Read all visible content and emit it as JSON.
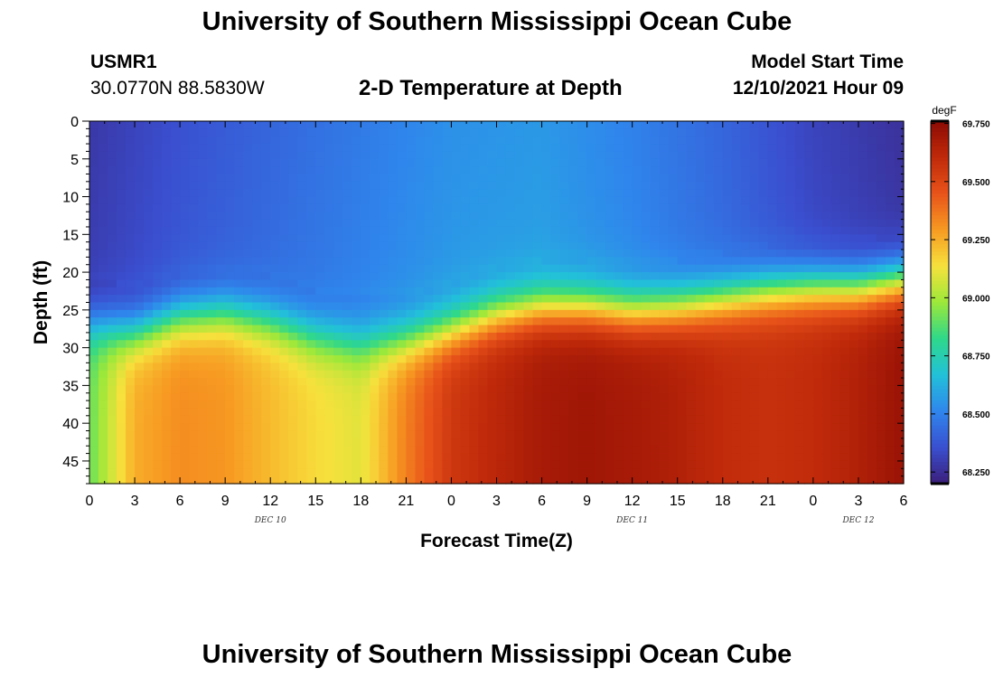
{
  "page": {
    "title": "University of Southern Mississippi Ocean Cube",
    "station": "USMR1",
    "coords": "30.0770N  88.5830W",
    "subtitle": "2-D Temperature at Depth",
    "model_start_label": "Model Start Time",
    "model_start_value": "12/10/2021 Hour 09",
    "footer_title": "University of Southern Mississippi Ocean Cube"
  },
  "colors": {
    "scale": [
      "#3b1f7a",
      "#3a4fd0",
      "#2f86ec",
      "#22c1d9",
      "#2fd88a",
      "#9ce83a",
      "#f7e13c",
      "#f79a22",
      "#e8531a",
      "#c02a0a",
      "#8c0a04"
    ]
  },
  "chart_data": {
    "type": "heatmap",
    "title": "2-D Temperature at Depth",
    "xlabel": "Forecast Time(Z)",
    "ylabel": "Depth (ft)",
    "x_range": [
      0,
      54
    ],
    "y_range": [
      0,
      48
    ],
    "x_ticks": [
      0,
      3,
      6,
      9,
      12,
      15,
      18,
      21,
      24,
      27,
      30,
      33,
      36,
      39,
      42,
      45,
      48,
      51,
      54
    ],
    "x_tick_labels": [
      "0",
      "3",
      "6",
      "9",
      "12",
      "15",
      "18",
      "21",
      "0",
      "3",
      "6",
      "9",
      "12",
      "15",
      "18",
      "21",
      "0",
      "3",
      "6"
    ],
    "y_ticks": [
      0,
      5,
      10,
      15,
      20,
      25,
      30,
      35,
      40,
      45
    ],
    "y_tick_labels": [
      "0",
      "5",
      "10",
      "15",
      "20",
      "25",
      "30",
      "35",
      "40",
      "45"
    ],
    "date_labels": [
      {
        "text": "DEC 10",
        "x": 12
      },
      {
        "text": "DEC 11",
        "x": 36
      },
      {
        "text": "DEC 12",
        "x": 51
      }
    ],
    "colorbar": {
      "unit": "degF",
      "min": 68.2,
      "max": 69.76,
      "ticks": [
        69.75,
        69.5,
        69.25,
        69.0,
        68.75,
        68.5,
        68.25
      ],
      "tick_labels": [
        "69.750",
        "69.500",
        "69.250",
        "69.000",
        "68.750",
        "68.500",
        "68.250"
      ]
    },
    "thermocline_hours": [
      0,
      3,
      6,
      9,
      12,
      15,
      18,
      21,
      24,
      27,
      30,
      33,
      36,
      39,
      42,
      45,
      48,
      51,
      54
    ],
    "thermocline_depth_ft": [
      27,
      28,
      26,
      25.5,
      26.5,
      28.5,
      29.5,
      29,
      27.5,
      25.5,
      24.5,
      24.5,
      25,
      24.5,
      23.5,
      22.5,
      22,
      22,
      21
    ],
    "surface_temp_hours": [
      0,
      6,
      12,
      18,
      24,
      30,
      36,
      42,
      48,
      54
    ],
    "surface_temp_degF": [
      68.28,
      68.36,
      68.42,
      68.48,
      68.54,
      68.56,
      68.5,
      68.42,
      68.32,
      68.26
    ],
    "bottom_temp_hours": [
      0,
      3,
      6,
      9,
      12,
      15,
      18,
      21,
      24,
      27,
      30,
      33,
      36,
      39,
      42,
      45,
      48,
      51,
      54
    ],
    "bottom_temp_degF": [
      68.9,
      69.25,
      69.32,
      69.3,
      69.22,
      69.15,
      69.1,
      69.35,
      69.55,
      69.62,
      69.68,
      69.7,
      69.68,
      69.65,
      69.6,
      69.58,
      69.6,
      69.65,
      69.72
    ]
  }
}
